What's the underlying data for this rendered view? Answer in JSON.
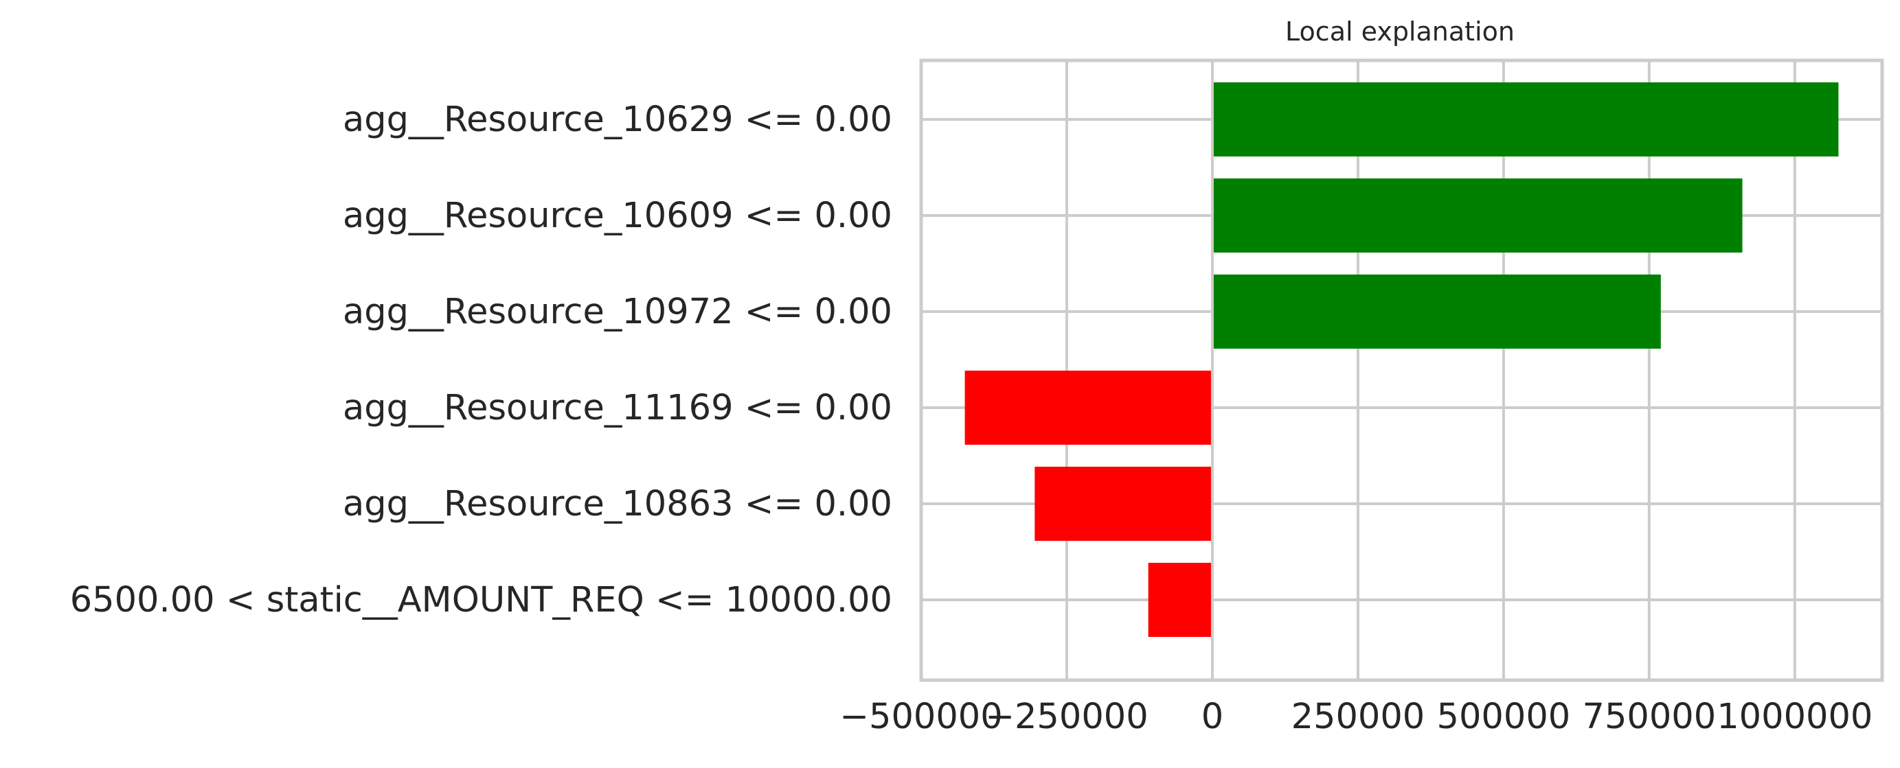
{
  "chart_data": {
    "type": "bar",
    "orientation": "horizontal",
    "title": "Local explanation",
    "xlabel": "",
    "ylabel": "",
    "categories": [
      "agg__Resource_10629 <= 0.00",
      "agg__Resource_10609 <= 0.00",
      "agg__Resource_10972 <= 0.00",
      "agg__Resource_11169 <= 0.00",
      "agg__Resource_10863 <= 0.00",
      "6500.00 < static__AMOUNT_REQ <= 10000.00"
    ],
    "values": [
      1075000,
      910000,
      770000,
      -425000,
      -305000,
      -110000
    ],
    "xlim": [
      -500000,
      1150000
    ],
    "xticks": [
      -500000,
      -250000,
      0,
      250000,
      500000,
      750000,
      1000000
    ],
    "xtick_labels": [
      "−500000",
      "−250000",
      "0",
      "250000",
      "500000",
      "750000",
      "1000000"
    ],
    "grid": true,
    "legend": "none",
    "colors": {
      "positive": "#008000",
      "negative": "#ff0000",
      "grid": "#cccccc",
      "spine": "#cccccc",
      "text": "#262626",
      "background": "#ffffff"
    }
  }
}
